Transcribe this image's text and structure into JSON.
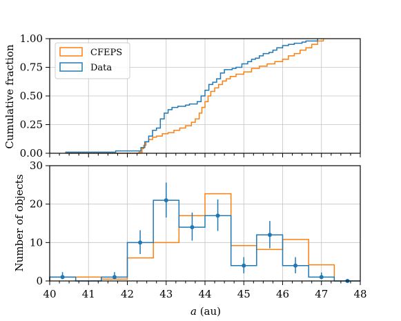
{
  "colors": {
    "cfeps": "#ff7f0e",
    "data": "#1f77b4",
    "grid": "#c4c4c4",
    "axis": "#000000"
  },
  "chart_data": [
    {
      "type": "line",
      "step": true,
      "xlabel": "",
      "ylabel": "Cumulative fraction",
      "xlim": [
        40,
        48
      ],
      "ylim": [
        0,
        1
      ],
      "xticks": [
        40,
        41,
        42,
        43,
        44,
        45,
        46,
        47,
        48
      ],
      "yticks": [
        0.0,
        0.25,
        0.5,
        0.75,
        1.0
      ],
      "ytick_labels": [
        "0.00",
        "0.25",
        "0.50",
        "0.75",
        "1.00"
      ],
      "grid": true,
      "legend": "top-left",
      "series": [
        {
          "name": "CFEPS",
          "x": [
            40.4,
            42.3,
            42.38,
            42.42,
            42.48,
            42.55,
            42.65,
            42.75,
            42.9,
            43.05,
            43.2,
            43.35,
            43.5,
            43.65,
            43.75,
            43.85,
            43.92,
            44.0,
            44.08,
            44.15,
            44.25,
            44.35,
            44.45,
            44.55,
            44.65,
            44.8,
            45.0,
            45.2,
            45.4,
            45.6,
            45.8,
            46.0,
            46.15,
            46.3,
            46.45,
            46.6,
            46.75,
            46.9,
            47.05
          ],
          "y": [
            0.0,
            0.01,
            0.04,
            0.07,
            0.1,
            0.12,
            0.14,
            0.15,
            0.17,
            0.18,
            0.2,
            0.22,
            0.24,
            0.27,
            0.3,
            0.35,
            0.4,
            0.45,
            0.5,
            0.54,
            0.57,
            0.6,
            0.63,
            0.65,
            0.67,
            0.69,
            0.71,
            0.74,
            0.76,
            0.78,
            0.8,
            0.82,
            0.85,
            0.87,
            0.9,
            0.92,
            0.95,
            0.98,
            1.0
          ]
        },
        {
          "name": "Data",
          "x": [
            40.4,
            41.7,
            42.35,
            42.45,
            42.55,
            42.65,
            42.75,
            42.85,
            42.95,
            43.05,
            43.15,
            43.3,
            43.5,
            43.6,
            43.8,
            43.9,
            44.0,
            44.1,
            44.2,
            44.3,
            44.4,
            44.5,
            44.7,
            44.8,
            44.95,
            45.1,
            45.2,
            45.3,
            45.4,
            45.5,
            45.65,
            45.75,
            45.85,
            46.0,
            46.15,
            46.3,
            46.5,
            46.6,
            46.9
          ],
          "y": [
            0.01,
            0.02,
            0.05,
            0.1,
            0.15,
            0.2,
            0.22,
            0.3,
            0.35,
            0.38,
            0.4,
            0.41,
            0.42,
            0.43,
            0.45,
            0.5,
            0.55,
            0.6,
            0.62,
            0.65,
            0.7,
            0.73,
            0.74,
            0.75,
            0.78,
            0.8,
            0.82,
            0.83,
            0.85,
            0.87,
            0.88,
            0.9,
            0.92,
            0.94,
            0.95,
            0.96,
            0.97,
            0.98,
            1.0
          ]
        }
      ]
    },
    {
      "type": "bar",
      "histogram": true,
      "xlabel": "a (au)",
      "ylabel": "Number of objects",
      "xlim": [
        40,
        48
      ],
      "ylim": [
        0,
        30
      ],
      "xticks": [
        40,
        41,
        42,
        43,
        44,
        45,
        46,
        47,
        48
      ],
      "yticks": [
        0,
        10,
        20,
        30
      ],
      "grid": true,
      "bin_edges": [
        40.0,
        40.67,
        41.33,
        42.0,
        42.67,
        43.33,
        44.0,
        44.67,
        45.33,
        46.0,
        46.67,
        47.33
      ],
      "series": [
        {
          "name": "CFEPS",
          "values": [
            1,
            1,
            0.5,
            6,
            10,
            17,
            22.7,
            9.2,
            8.2,
            10.8,
            4.2
          ]
        },
        {
          "name": "Data",
          "values": [
            1,
            0,
            1,
            10,
            21,
            14,
            17,
            4,
            12,
            4,
            1,
            0
          ],
          "bin_edges": [
            40.0,
            40.67,
            41.33,
            42.0,
            42.67,
            43.33,
            44.0,
            44.67,
            45.33,
            46.0,
            46.67,
            47.33,
            48.0
          ]
        }
      ],
      "errorbars": {
        "x": [
          40.33,
          41.67,
          42.33,
          43.0,
          43.67,
          44.33,
          45.0,
          45.67,
          46.33,
          47.0,
          47.67
        ],
        "y": [
          1,
          1,
          10,
          21,
          14,
          17,
          4,
          12,
          4,
          1,
          0
        ],
        "lower": [
          0.5,
          0.5,
          3,
          4.5,
          3.5,
          4,
          2,
          3.5,
          2,
          0.5,
          0
        ],
        "upper": [
          1.3,
          1.3,
          3.2,
          4.6,
          3.8,
          4.2,
          2.2,
          3.6,
          2.2,
          1.2,
          0
        ]
      }
    }
  ]
}
